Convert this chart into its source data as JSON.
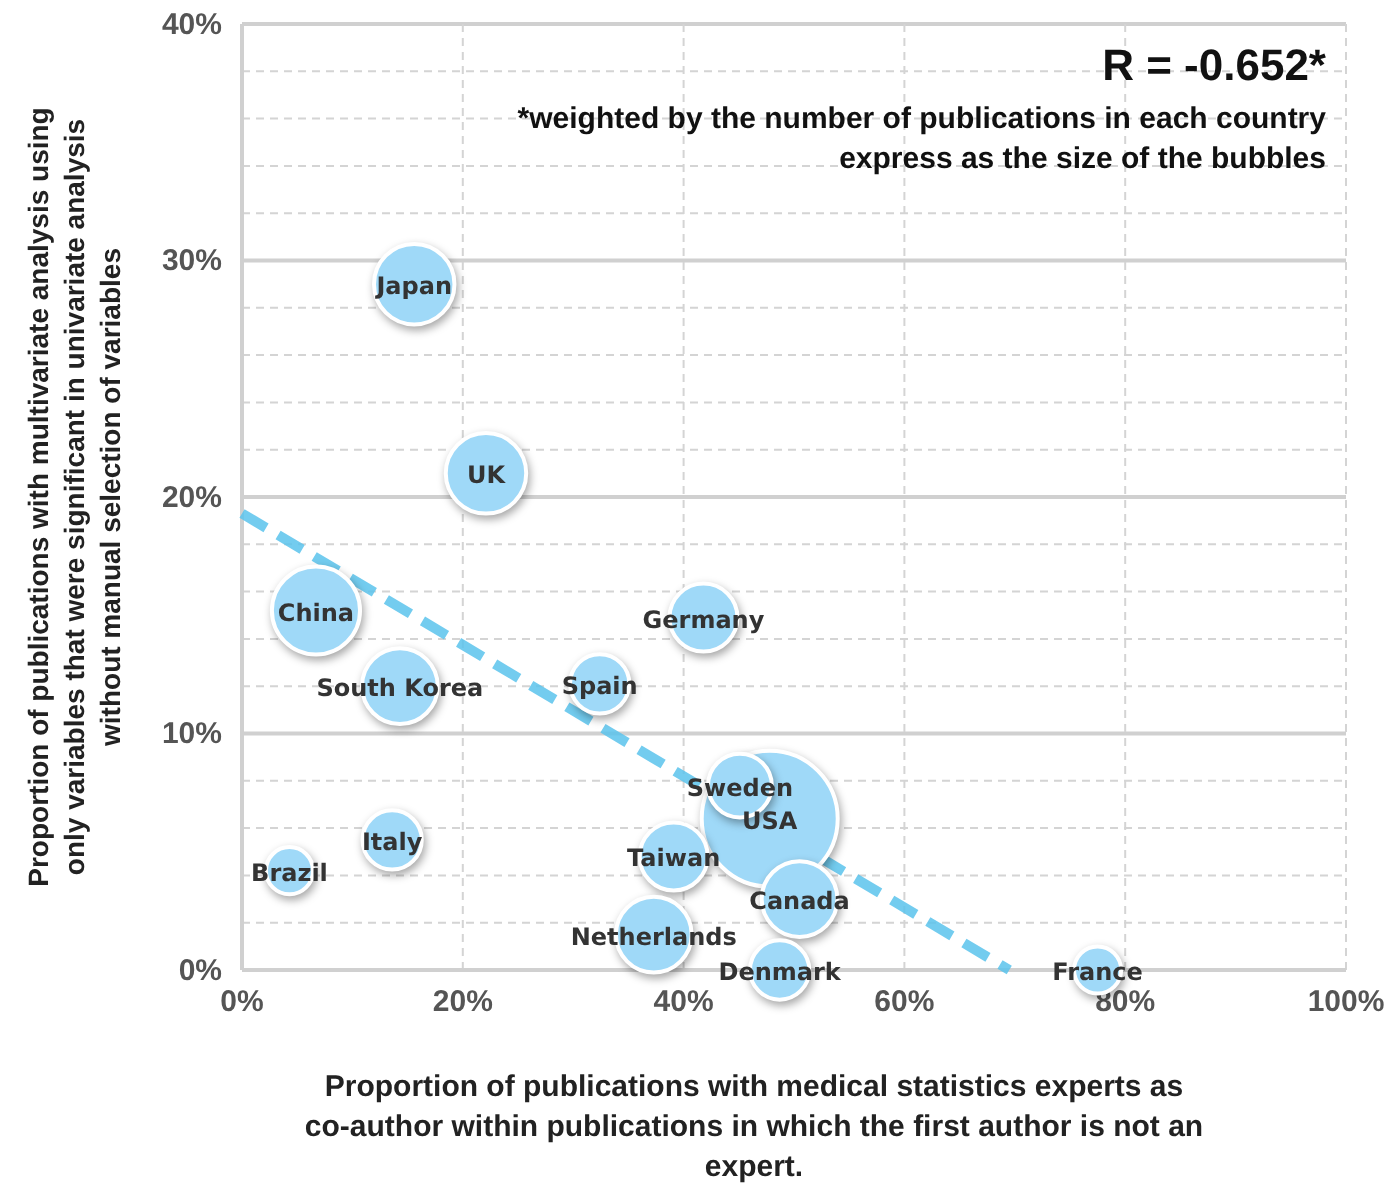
{
  "chart_data": {
    "type": "bubble",
    "xlabel": "Proportion of publications with medical statistics experts as co-author within publications in which the first author is not an expert.",
    "ylabel": "Proportion of publications with multivariate analysis using only variables that were significant in univariate analysis without manual selection of variables",
    "annotations": [
      "R = -0.652*",
      "*weighted by the number of publications in each country express as the size of the bubbles"
    ],
    "xlim": [
      0,
      100
    ],
    "ylim": [
      0,
      40
    ],
    "xticks": [
      {
        "value": 0,
        "label": "0%"
      },
      {
        "value": 20,
        "label": "20%"
      },
      {
        "value": 40,
        "label": "40%"
      },
      {
        "value": 60,
        "label": "60%"
      },
      {
        "value": 80,
        "label": "80%"
      },
      {
        "value": 100,
        "label": "100%"
      }
    ],
    "yticks": [
      {
        "value": 0,
        "label": "0%"
      },
      {
        "value": 10,
        "label": "10%"
      },
      {
        "value": 20,
        "label": "20%"
      },
      {
        "value": 30,
        "label": "30%"
      },
      {
        "value": 40,
        "label": "40%"
      }
    ],
    "grid": true,
    "legend": false,
    "series": [
      {
        "type": "line",
        "line_style": "dashed",
        "color": "#5bc3ec",
        "x": [
          0,
          69.5
        ],
        "values": [
          19.3,
          0
        ]
      },
      {
        "name": "USA",
        "color": "#9fd9f8",
        "x": [
          47.8
        ],
        "values": [
          6.4
        ],
        "sizes": [
          1
        ]
      },
      {
        "name": "Japan",
        "color": "#9fd9f8",
        "x": [
          15.6
        ],
        "values": [
          29.0
        ],
        "sizes": [
          0.35
        ]
      },
      {
        "name": "UK",
        "color": "#9fd9f8",
        "x": [
          22.1
        ],
        "values": [
          21.0
        ],
        "sizes": [
          0.35
        ]
      },
      {
        "name": "China",
        "color": "#9fd9f8",
        "x": [
          6.7
        ],
        "values": [
          15.2
        ],
        "sizes": [
          0.42
        ]
      },
      {
        "name": "Germany",
        "color": "#9fd9f8",
        "x": [
          41.8
        ],
        "values": [
          14.9
        ],
        "sizes": [
          0.25
        ]
      },
      {
        "name": "South Korea",
        "color": "#9fd9f8",
        "x": [
          14.3
        ],
        "values": [
          12.0
        ],
        "sizes": [
          0.31
        ]
      },
      {
        "name": "Spain",
        "color": "#9fd9f8",
        "x": [
          32.4
        ],
        "values": [
          12.1
        ],
        "sizes": [
          0.19
        ]
      },
      {
        "name": "Sweden",
        "color": "#9fd9f8",
        "x": [
          45.1
        ],
        "values": [
          7.8
        ],
        "sizes": [
          0.22
        ]
      },
      {
        "name": "Italy",
        "color": "#9fd9f8",
        "x": [
          13.6
        ],
        "values": [
          5.5
        ],
        "sizes": [
          0.19
        ]
      },
      {
        "name": "Brazil",
        "color": "#9fd9f8",
        "x": [
          4.3
        ],
        "values": [
          4.2
        ],
        "sizes": [
          0.12
        ]
      },
      {
        "name": "Taiwan",
        "color": "#9fd9f8",
        "x": [
          39.1
        ],
        "values": [
          4.8
        ],
        "sizes": [
          0.25
        ]
      },
      {
        "name": "Canada",
        "color": "#9fd9f8",
        "x": [
          50.5
        ],
        "values": [
          3.0
        ],
        "sizes": [
          0.31
        ]
      },
      {
        "name": "Netherlands",
        "color": "#9fd9f8",
        "x": [
          37.3
        ],
        "values": [
          1.5
        ],
        "sizes": [
          0.31
        ]
      },
      {
        "name": "Denmark",
        "color": "#9fd9f8",
        "x": [
          48.7
        ],
        "values": [
          0
        ],
        "sizes": [
          0.19
        ]
      },
      {
        "name": "France",
        "color": "#9fd9f8",
        "x": [
          77.5
        ],
        "values": [
          0
        ],
        "sizes": [
          0.12
        ]
      }
    ]
  }
}
